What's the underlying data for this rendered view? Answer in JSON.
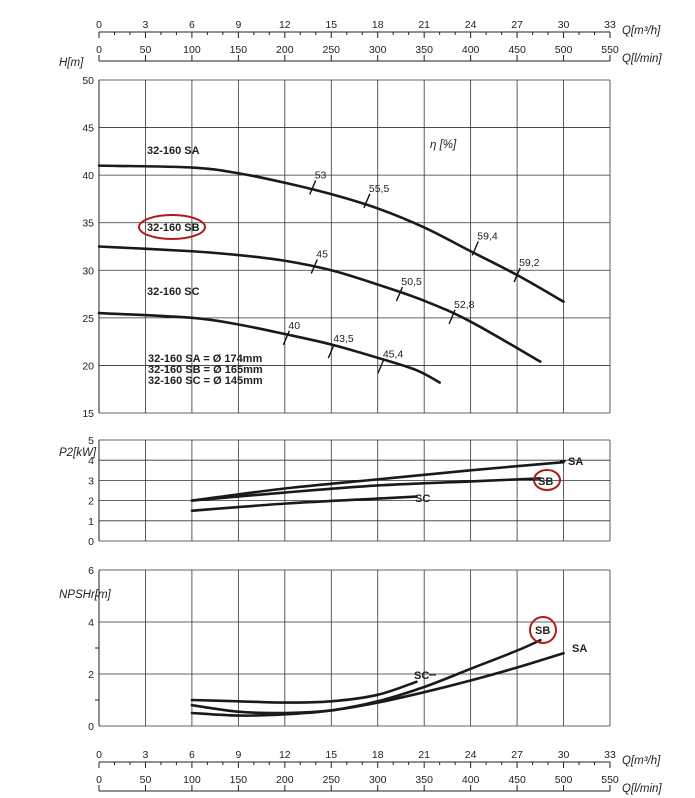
{
  "chart_data": [
    {
      "id": "head",
      "type": "line",
      "ylabel": "H[m]",
      "ylim": [
        15,
        50
      ],
      "yticks": [
        15,
        20,
        25,
        30,
        35,
        40,
        45,
        50
      ],
      "xlim": [
        0,
        33
      ],
      "eff_label": "η [%]",
      "series": [
        {
          "name": "32-160 SA",
          "points": [
            [
              0,
              41.0
            ],
            [
              6,
              40.8
            ],
            [
              9,
              40.2
            ],
            [
              12,
              39.2
            ],
            [
              15,
              38.0
            ],
            [
              18,
              36.5
            ],
            [
              21,
              34.5
            ],
            [
              24,
              32.0
            ],
            [
              27,
              29.5
            ],
            [
              30,
              26.7
            ]
          ]
        },
        {
          "name": "32-160 SB",
          "points": [
            [
              0,
              32.5
            ],
            [
              6,
              32.0
            ],
            [
              9,
              31.6
            ],
            [
              12,
              31.0
            ],
            [
              15,
              30.0
            ],
            [
              18,
              28.5
            ],
            [
              21,
              26.8
            ],
            [
              24,
              24.6
            ],
            [
              28.5,
              20.4
            ]
          ]
        },
        {
          "name": "32-160 SC",
          "points": [
            [
              0,
              25.5
            ],
            [
              6,
              25.0
            ],
            [
              9,
              24.3
            ],
            [
              12,
              23.3
            ],
            [
              15,
              22.2
            ],
            [
              18,
              20.8
            ],
            [
              20.5,
              19.5
            ],
            [
              22,
              18.2
            ]
          ]
        }
      ],
      "efficiency_marks": [
        {
          "label": "53",
          "x": 13.8,
          "y": 38.7
        },
        {
          "label": "55,5",
          "x": 17.3,
          "y": 37.3
        },
        {
          "label": "59,4",
          "x": 24.3,
          "y": 32.3
        },
        {
          "label": "59,2",
          "x": 27.0,
          "y": 29.5
        },
        {
          "label": "45",
          "x": 13.9,
          "y": 30.4
        },
        {
          "label": "50,5",
          "x": 19.4,
          "y": 27.5
        },
        {
          "label": "52,8",
          "x": 22.8,
          "y": 25.1
        },
        {
          "label": "40",
          "x": 12.1,
          "y": 22.9
        },
        {
          "label": "43,5",
          "x": 15.0,
          "y": 21.5
        },
        {
          "label": "45,4",
          "x": 18.2,
          "y": 19.9
        }
      ],
      "legend_lines": [
        "32-160 SA = Ø 174mm",
        "32-160 SB = Ø 165mm",
        "32-160 SC = Ø 145mm"
      ]
    },
    {
      "id": "power",
      "type": "line",
      "ylabel": "P2[kW]",
      "ylim": [
        0,
        5
      ],
      "yticks": [
        0,
        1,
        2,
        3,
        4,
        5
      ],
      "xlim": [
        0,
        33
      ],
      "series": [
        {
          "name": "SA",
          "points": [
            [
              6,
              2.0
            ],
            [
              12,
              2.6
            ],
            [
              18,
              3.05
            ],
            [
              24,
              3.5
            ],
            [
              30,
              3.9
            ]
          ]
        },
        {
          "name": "SB",
          "points": [
            [
              6,
              2.0
            ],
            [
              12,
              2.4
            ],
            [
              18,
              2.75
            ],
            [
              24,
              2.95
            ],
            [
              28.5,
              3.1
            ]
          ]
        },
        {
          "name": "SC",
          "points": [
            [
              6,
              1.5
            ],
            [
              12,
              1.85
            ],
            [
              18,
              2.1
            ],
            [
              20.5,
              2.2
            ]
          ]
        }
      ]
    },
    {
      "id": "npsh",
      "type": "line",
      "ylabel": "NPSHr[m]",
      "ylim": [
        0,
        6
      ],
      "yticks": [
        0,
        2,
        4,
        6
      ],
      "xlim": [
        0,
        33
      ],
      "series": [
        {
          "name": "SA",
          "points": [
            [
              6,
              0.8
            ],
            [
              9,
              0.55
            ],
            [
              12,
              0.5
            ],
            [
              15,
              0.6
            ],
            [
              18,
              0.9
            ],
            [
              21,
              1.3
            ],
            [
              24,
              1.75
            ],
            [
              27,
              2.25
            ],
            [
              30,
              2.8
            ]
          ]
        },
        {
          "name": "SB",
          "points": [
            [
              6,
              0.5
            ],
            [
              9,
              0.4
            ],
            [
              12,
              0.45
            ],
            [
              15,
              0.6
            ],
            [
              18,
              0.95
            ],
            [
              21,
              1.5
            ],
            [
              24,
              2.2
            ],
            [
              27,
              2.9
            ],
            [
              28.5,
              3.3
            ]
          ]
        },
        {
          "name": "SC",
          "points": [
            [
              6,
              1.0
            ],
            [
              9,
              0.95
            ],
            [
              12,
              0.9
            ],
            [
              15,
              0.95
            ],
            [
              18,
              1.2
            ],
            [
              20.5,
              1.7
            ]
          ]
        }
      ]
    }
  ],
  "axes": {
    "q_m3h_label": "Q[m³/h]",
    "q_lmin_label": "Q[l/min]",
    "q_m3h_ticks": [
      "0",
      "3",
      "6",
      "9",
      "12",
      "15",
      "18",
      "21",
      "24",
      "27",
      "30",
      "33"
    ],
    "q_lmin_ticks": [
      "0",
      "50",
      "100",
      "150",
      "200",
      "250",
      "300",
      "350",
      "400",
      "450",
      "500",
      "550"
    ]
  },
  "highlight_color": "#b01c1c"
}
